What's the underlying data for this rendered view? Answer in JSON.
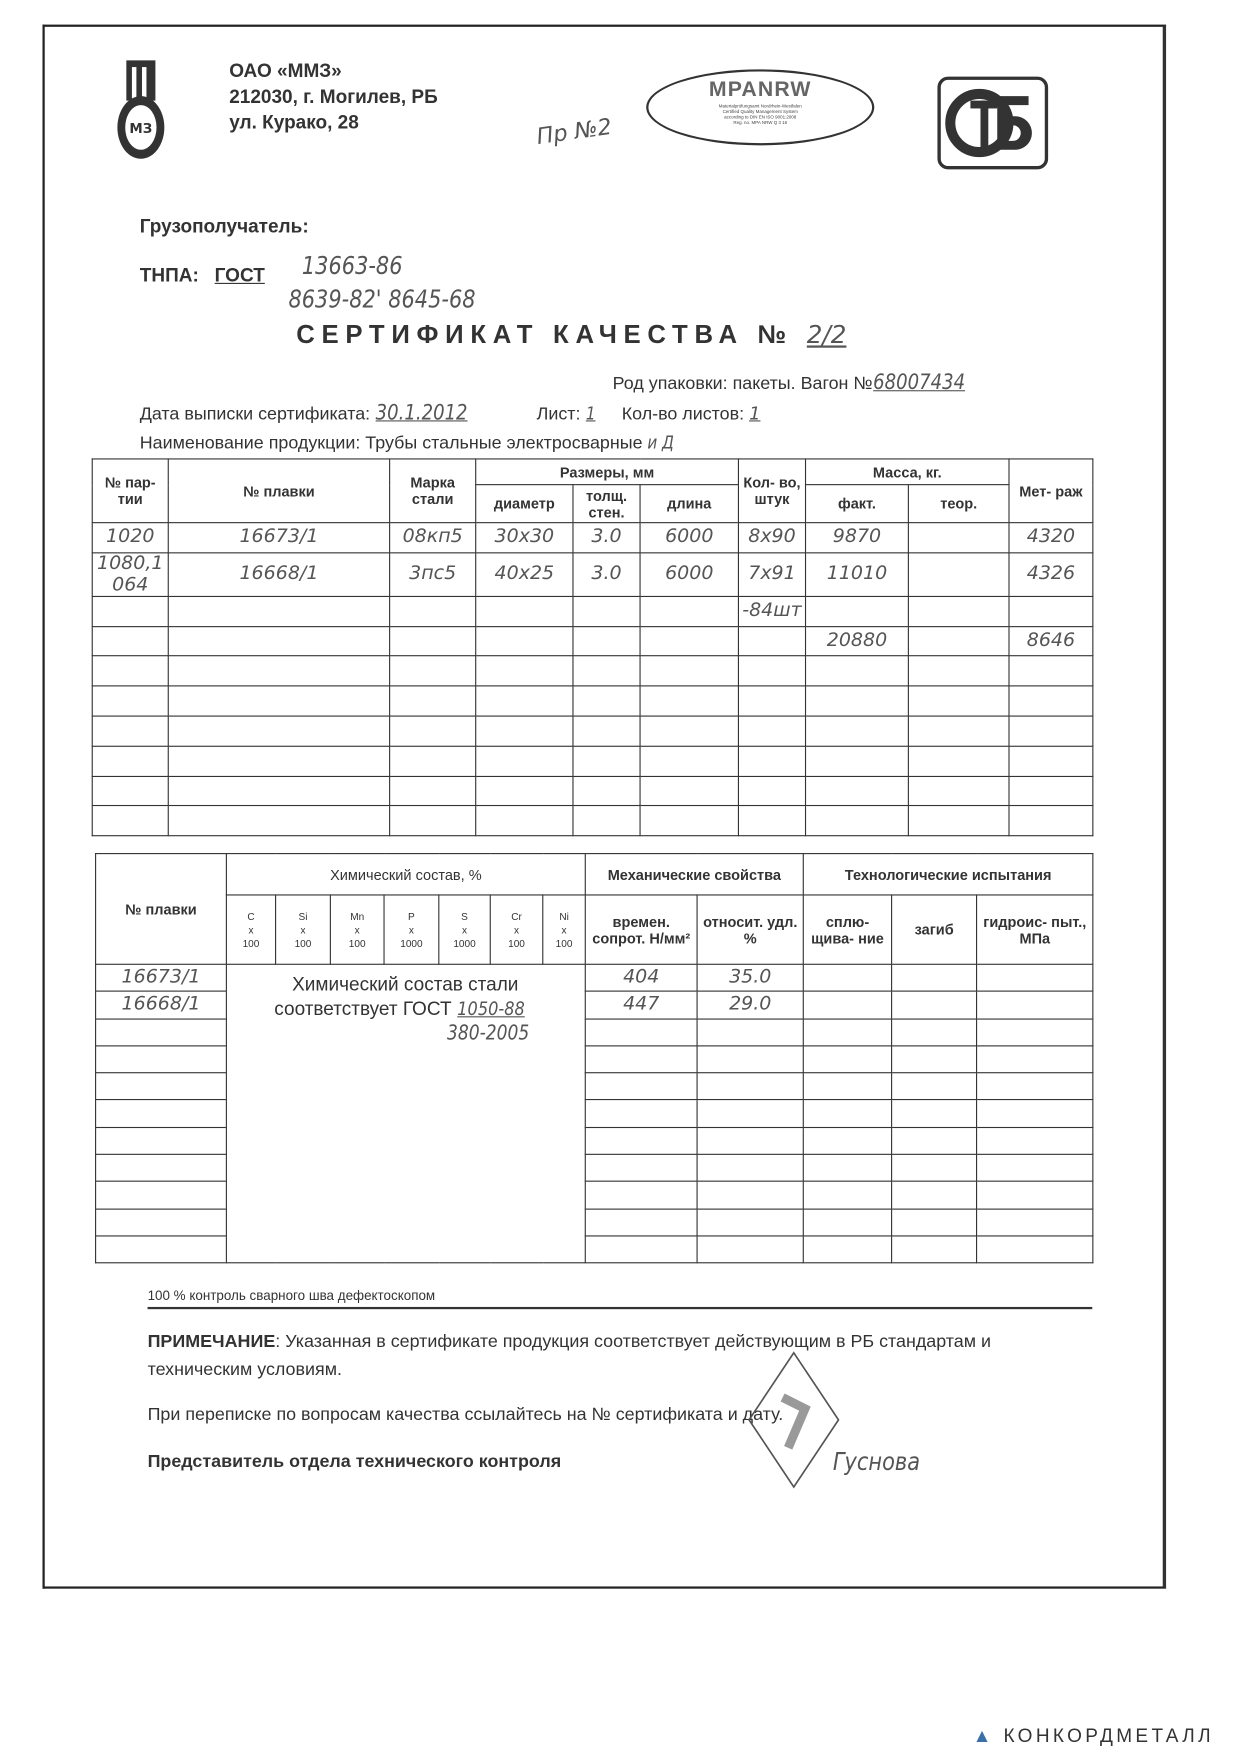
{
  "header": {
    "company": "ОАО «ММЗ»",
    "address_line1": "212030, г. Могилев, РБ",
    "address_line2": "ул. Курако, 28",
    "handwritten_note": "Пр №2",
    "logos": {
      "mmz": "ММЗ",
      "mpanrw": "MPANRW",
      "mpanrw_sub": [
        "Materialprüfungsamt Nordrhein-Westfalen",
        "Certified Quality Management System",
        "according to DIN EN ISO 9001:2008",
        "Reg. no. MPA NRW Q 3 16"
      ],
      "stb": "СТБ"
    }
  },
  "consignee": {
    "label": "Грузополучатель:",
    "value": ""
  },
  "tnpa": {
    "label": "ТНПА:",
    "gost_label": "ГОСТ",
    "line1": "13663-86",
    "line2": "8639-82' 8645-68"
  },
  "certificate": {
    "title": "СЕРТИФИКАТ КАЧЕСТВА №",
    "number": "2/2"
  },
  "packing": {
    "label": "Род упаковки: пакеты. Вагон №",
    "wagon": "68007434"
  },
  "issue": {
    "date_label": "Дата выписки сертификата:",
    "date": "30.1.2012",
    "sheet_label": "Лист:",
    "sheet": "1",
    "sheets_label": "Кол-во листов:",
    "sheets": "1"
  },
  "product": {
    "label": "Наименование продукции:",
    "value": "Трубы стальные электросварные",
    "suffix": "и Д"
  },
  "table1": {
    "headers": {
      "batch": "№ пар- тии",
      "heat": "№ плавки",
      "grade": "Марка стали",
      "sizes": "Размеры, мм",
      "diameter": "диаметр",
      "thickness": "толщ. стен.",
      "length": "длина",
      "qty": "Кол- во, штук",
      "mass": "Масса, кг.",
      "mass_fact": "факт.",
      "mass_theor": "теор.",
      "meters": "Мет- раж"
    },
    "rows": [
      [
        "1020",
        "16673/1",
        "08кп5",
        "30х30",
        "3.0",
        "6000",
        "8х90",
        "9870",
        "",
        "4320"
      ],
      [
        "1080,1064",
        "16668/1",
        "3пс5",
        "40х25",
        "3.0",
        "6000",
        "7х91",
        "11010",
        "",
        "4326"
      ],
      [
        "",
        "",
        "",
        "",
        "",
        "",
        "-84шт",
        "",
        "",
        ""
      ],
      [
        "",
        "",
        "",
        "",
        "",
        "",
        "",
        "20880",
        "",
        "8646"
      ],
      [
        "",
        "",
        "",
        "",
        "",
        "",
        "",
        "",
        "",
        ""
      ],
      [
        "",
        "",
        "",
        "",
        "",
        "",
        "",
        "",
        "",
        ""
      ],
      [
        "",
        "",
        "",
        "",
        "",
        "",
        "",
        "",
        "",
        ""
      ],
      [
        "",
        "",
        "",
        "",
        "",
        "",
        "",
        "",
        "",
        ""
      ],
      [
        "",
        "",
        "",
        "",
        "",
        "",
        "",
        "",
        "",
        ""
      ],
      [
        "",
        "",
        "",
        "",
        "",
        "",
        "",
        "",
        "",
        ""
      ]
    ]
  },
  "table2": {
    "headers": {
      "heat": "№ плавки",
      "chem": "Химический состав, %",
      "elements": [
        {
          "el": "C",
          "x": "x",
          "mult": "100"
        },
        {
          "el": "Si",
          "x": "x",
          "mult": "100"
        },
        {
          "el": "Mn",
          "x": "x",
          "mult": "100"
        },
        {
          "el": "P",
          "x": "x",
          "mult": "1000"
        },
        {
          "el": "S",
          "x": "x",
          "mult": "1000"
        },
        {
          "el": "Cr",
          "x": "x",
          "mult": "100"
        },
        {
          "el": "Ni",
          "x": "x",
          "mult": "100"
        }
      ],
      "mech": "Механические свойства",
      "tensile": "времен. сопрот. Н/мм²",
      "elong": "относит. удл. %",
      "tech": "Технологические испытания",
      "flatten": "сплю- щива- ние",
      "bend": "загиб",
      "hydro": "гидроис- пыт., МПа"
    },
    "chem_note": {
      "line1": "Химический состав стали",
      "line2": "соответствует ГОСТ",
      "gost1": "1050-88",
      "gost2": "380-2005"
    },
    "rows": [
      {
        "heat": "16673/1",
        "tensile": "404",
        "elong": "35.0"
      },
      {
        "heat": "16668/1",
        "tensile": "447",
        "elong": "29.0"
      }
    ]
  },
  "control_note": "100 %   контроль сварного шва дефектоскопом",
  "remark": {
    "label": "ПРИМЕЧАНИЕ",
    "text": ": Указанная в сертификате продукция соответствует действующим в РБ стандартам и техническим условиям."
  },
  "correspondence": "При переписке по вопросам качества ссылайтесь на № сертификата и дату.",
  "representative": {
    "label": "Представитель отдела технического контроля",
    "signature": "Гуснова"
  },
  "watermark": "КОНКОРДМЕТАЛЛ"
}
